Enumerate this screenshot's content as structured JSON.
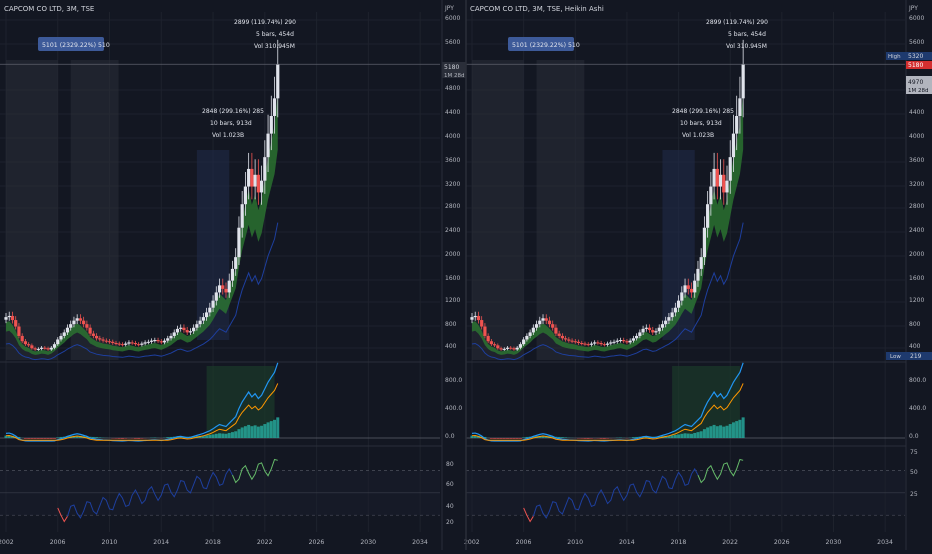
{
  "colors": {
    "background": "#131722",
    "grid": "#1e222d",
    "up": "#e0e3eb",
    "down": "#ef5350",
    "macd": "#2196f3",
    "signal": "#ff9800",
    "hist_up": "#26a69a",
    "rsi": "#7e57c2",
    "ema_fast": "#2e7d32",
    "ema_slow": "#1e3f9e",
    "text": "#b2b5be",
    "label_blue": "#2962ff"
  },
  "panels": [
    {
      "title": "CAPCOM CO LTD, 3M, TSE",
      "currency": "JPY",
      "price_axis": [
        "6000",
        "5600",
        "4800",
        "4400",
        "4000",
        "3600",
        "3200",
        "2800",
        "2400",
        "2000",
        "1600",
        "1200",
        "800",
        "400"
      ],
      "price_labels": [
        {
          "text": "5180"
        },
        {
          "text": "1M 28d"
        }
      ],
      "macd_axis": [
        "800.0",
        "400.0",
        "0.0"
      ],
      "rsi_axis": [
        "80",
        "60",
        "40",
        "20"
      ],
      "time_axis": [
        "2002",
        "2006",
        "2010",
        "2014",
        "2018",
        "2022",
        "2026",
        "2030",
        "2034"
      ],
      "measure_top": {
        "line1": "2899 (119.74%) 290",
        "line2": "5 bars, 454d",
        "line3": "Vol 310.945M"
      },
      "measure_mid": {
        "line1": "2848 (299.16%) 285",
        "line2": "10 bars, 913d",
        "line3": "Vol 1.023B"
      },
      "box_label": "5101 (2329.22%) 510"
    },
    {
      "title": "CAPCOM CO LTD, 3M, TSE, Heikin Ashi",
      "currency": "JPY",
      "price_axis": [
        "6000",
        "5600",
        "4800",
        "4400",
        "4000",
        "3600",
        "3200",
        "2800",
        "2400",
        "2000",
        "1600",
        "1200",
        "800",
        "400"
      ],
      "price_labels": [
        {
          "text": "High"
        },
        {
          "text": "5320"
        },
        {
          "text": "5180"
        },
        {
          "text": "4970"
        },
        {
          "text": "1M 28d"
        },
        {
          "text": "Low"
        },
        {
          "text": "219"
        }
      ],
      "macd_axis": [
        "800.0",
        "400.0",
        "0.0"
      ],
      "rsi_axis": [
        "75",
        "50",
        "25"
      ],
      "time_axis": [
        "2002",
        "2006",
        "2010",
        "2014",
        "2018",
        "2022",
        "2026",
        "2030",
        "2034"
      ],
      "measure_top": {
        "line1": "2899 (119.74%) 290",
        "line2": "5 bars, 454d",
        "line3": "Vol 310.945M"
      },
      "measure_mid": {
        "line1": "2848 (299.16%) 285",
        "line2": "10 bars, 913d",
        "line3": "Vol 1.023B"
      },
      "box_label": "5101 (2329.22%) 510"
    }
  ],
  "chart_data": {
    "type": "candlestick",
    "interval": "3M",
    "x_range": [
      2002,
      2036
    ],
    "price_range": [
      219,
      6000
    ],
    "macd_range": [
      -60,
      950
    ],
    "rsi_range": [
      15,
      90
    ],
    "quarterly_close": [
      [
        2002.0,
        880
      ],
      [
        2002.25,
        900
      ],
      [
        2002.5,
        830
      ],
      [
        2002.75,
        720
      ],
      [
        2003.0,
        560
      ],
      [
        2003.25,
        470
      ],
      [
        2003.5,
        420
      ],
      [
        2003.75,
        400
      ],
      [
        2004.0,
        350
      ],
      [
        2004.25,
        330
      ],
      [
        2004.5,
        340
      ],
      [
        2004.75,
        360
      ],
      [
        2005.0,
        350
      ],
      [
        2005.25,
        330
      ],
      [
        2005.5,
        360
      ],
      [
        2005.75,
        420
      ],
      [
        2006.0,
        500
      ],
      [
        2006.25,
        560
      ],
      [
        2006.5,
        620
      ],
      [
        2006.75,
        700
      ],
      [
        2007.0,
        760
      ],
      [
        2007.25,
        820
      ],
      [
        2007.5,
        860
      ],
      [
        2007.75,
        820
      ],
      [
        2008.0,
        760
      ],
      [
        2008.25,
        700
      ],
      [
        2008.5,
        600
      ],
      [
        2008.75,
        560
      ],
      [
        2009.0,
        520
      ],
      [
        2009.25,
        500
      ],
      [
        2009.5,
        480
      ],
      [
        2009.75,
        470
      ],
      [
        2010.0,
        460
      ],
      [
        2010.25,
        440
      ],
      [
        2010.5,
        430
      ],
      [
        2010.75,
        420
      ],
      [
        2011.0,
        410
      ],
      [
        2011.25,
        430
      ],
      [
        2011.5,
        450
      ],
      [
        2011.75,
        440
      ],
      [
        2012.0,
        420
      ],
      [
        2012.25,
        410
      ],
      [
        2012.5,
        430
      ],
      [
        2012.75,
        450
      ],
      [
        2013.0,
        460
      ],
      [
        2013.25,
        480
      ],
      [
        2013.5,
        490
      ],
      [
        2013.75,
        470
      ],
      [
        2014.0,
        450
      ],
      [
        2014.25,
        480
      ],
      [
        2014.5,
        520
      ],
      [
        2014.75,
        560
      ],
      [
        2015.0,
        620
      ],
      [
        2015.25,
        680
      ],
      [
        2015.5,
        700
      ],
      [
        2015.75,
        660
      ],
      [
        2016.0,
        620
      ],
      [
        2016.25,
        640
      ],
      [
        2016.5,
        700
      ],
      [
        2016.75,
        760
      ],
      [
        2017.0,
        820
      ],
      [
        2017.25,
        880
      ],
      [
        2017.5,
        960
      ],
      [
        2017.75,
        1040
      ],
      [
        2018.0,
        1160
      ],
      [
        2018.25,
        1300
      ],
      [
        2018.5,
        1420
      ],
      [
        2018.75,
        1360
      ],
      [
        2019.0,
        1300
      ],
      [
        2019.25,
        1500
      ],
      [
        2019.5,
        1700
      ],
      [
        2019.75,
        1900
      ],
      [
        2020.0,
        2400
      ],
      [
        2020.25,
        2800
      ],
      [
        2020.5,
        3100
      ],
      [
        2020.75,
        3400
      ],
      [
        2021.0,
        3100
      ],
      [
        2021.25,
        3300
      ],
      [
        2021.5,
        3000
      ],
      [
        2021.75,
        3200
      ],
      [
        2022.0,
        3600
      ],
      [
        2022.25,
        4000
      ],
      [
        2022.5,
        4300
      ],
      [
        2022.75,
        4600
      ],
      [
        2023.0,
        5180
      ]
    ],
    "shaded_ranges": [
      [
        2002.0,
        2006.0
      ],
      [
        2007.0,
        2010.7
      ]
    ],
    "measure_box": [
      2016.75,
      2019.25
    ]
  }
}
